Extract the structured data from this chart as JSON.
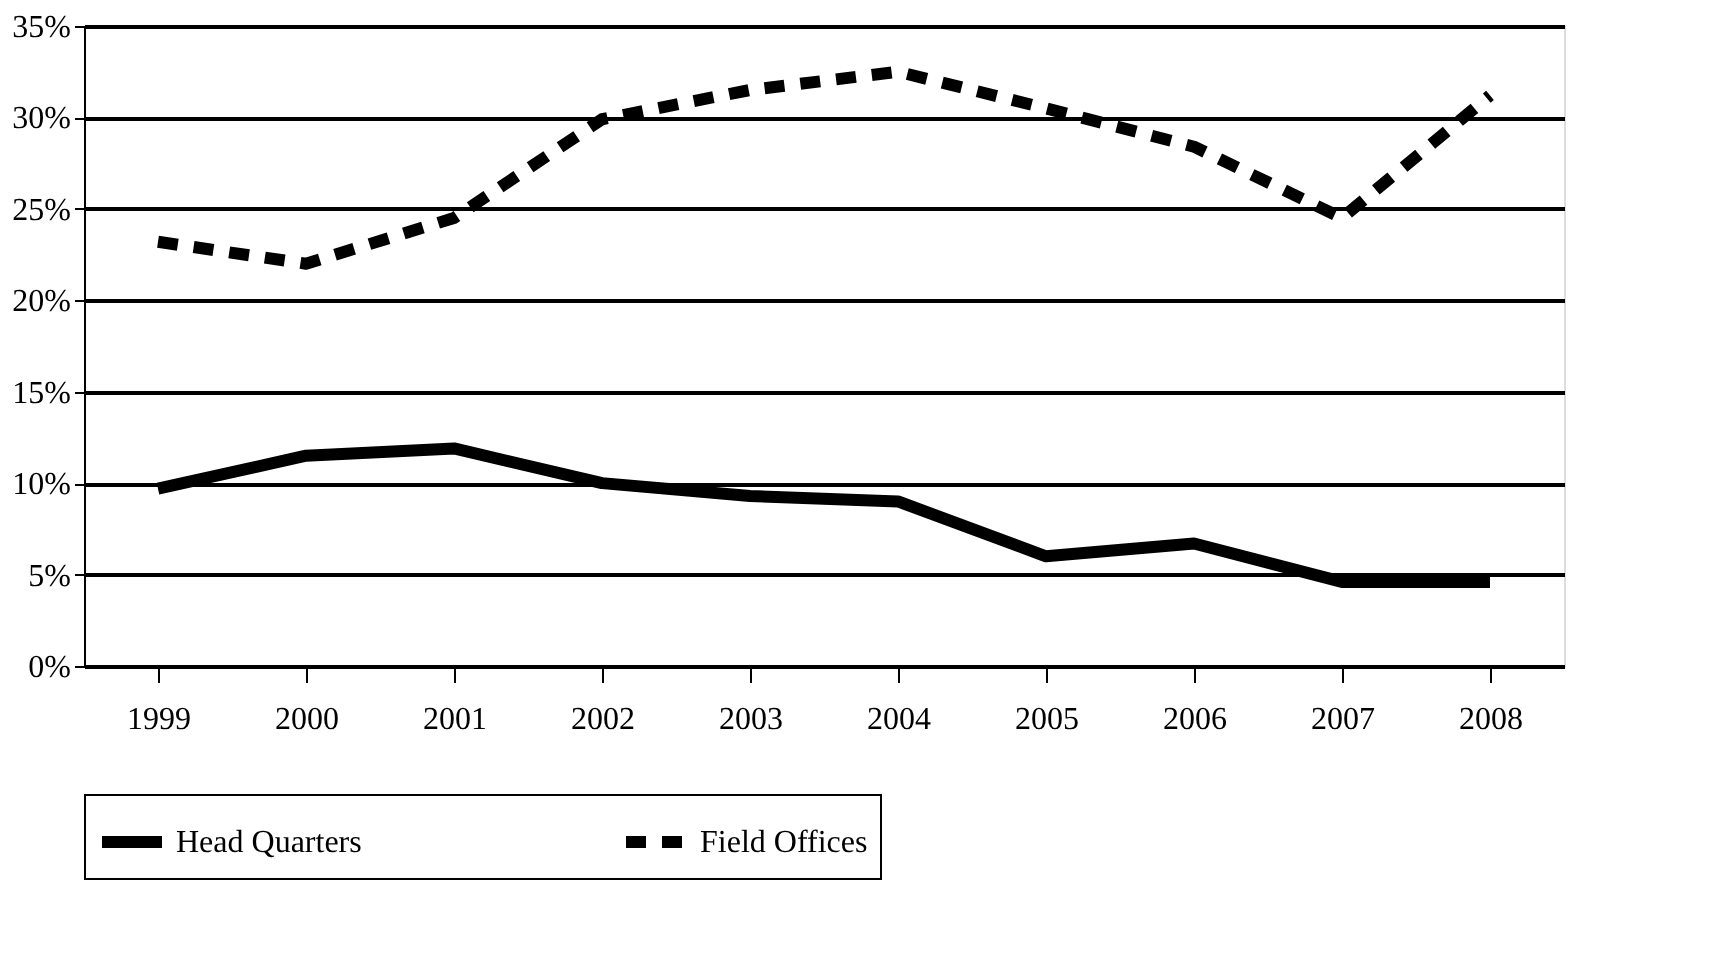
{
  "chart_data": {
    "type": "line",
    "categories": [
      "1999",
      "2000",
      "2001",
      "2002",
      "2003",
      "2004",
      "2005",
      "2006",
      "2007",
      "2008"
    ],
    "series": [
      {
        "name": "Head Quarters",
        "color": "#000000",
        "line_style": "solid",
        "values": [
          0.097,
          0.115,
          0.119,
          0.1,
          0.093,
          0.09,
          0.06,
          0.067,
          0.046,
          0.046
        ]
      },
      {
        "name": "Field Offices",
        "color": "#000000",
        "line_style": "dashed",
        "values": [
          0.232,
          0.22,
          0.245,
          0.299,
          0.315,
          0.325,
          0.305,
          0.284,
          0.245,
          0.312
        ]
      }
    ],
    "ylim": [
      0,
      0.35
    ],
    "yticks": [
      {
        "value": 0,
        "label": "0%"
      },
      {
        "value": 0.05,
        "label": "5%"
      },
      {
        "value": 0.1,
        "label": "10%"
      },
      {
        "value": 0.15,
        "label": "15%"
      },
      {
        "value": 0.2,
        "label": "20%"
      },
      {
        "value": 0.25,
        "label": "25%"
      },
      {
        "value": 0.3,
        "label": "30%"
      },
      {
        "value": 0.35,
        "label": "35%"
      }
    ],
    "grid": "y",
    "legend": "bottom",
    "marker": "none"
  }
}
